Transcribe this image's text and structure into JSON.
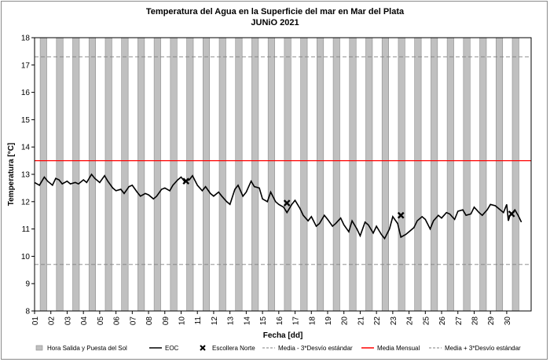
{
  "chart_data": {
    "type": "line",
    "title": "Temperatura del Agua en la Superficie del mar en Mar del Plata",
    "subtitle": "JUNiO 2021",
    "xlabel": "Fecha [dd]",
    "ylabel": "Temperatura [°C]",
    "ylim": [
      8,
      18
    ],
    "yticks": [
      "8",
      "9",
      "10",
      "11",
      "12",
      "13",
      "14",
      "15",
      "16",
      "17",
      "18"
    ],
    "xticks": [
      "01",
      "02",
      "03",
      "04",
      "05",
      "06",
      "07",
      "08",
      "09",
      "10",
      "11",
      "12",
      "13",
      "14",
      "15",
      "16",
      "17",
      "18",
      "19",
      "20",
      "21",
      "22",
      "23",
      "24",
      "25",
      "26",
      "27",
      "28",
      "29",
      "30"
    ],
    "grid": false,
    "legend_position": "bottom",
    "daylight_bars": {
      "name": "Hora Salida y Puesta del Sol",
      "color": "#c0c0c0",
      "sunrise_hour": 8.2,
      "sunset_hour": 18.0
    },
    "reference_lines": [
      {
        "name": "Media - 3*Desvío estándar",
        "value": 9.7,
        "color": "#808080",
        "style": "dashed"
      },
      {
        "name": "Media Mensual",
        "value": 13.5,
        "color": "#ff0000",
        "style": "solid"
      },
      {
        "name": "Media + 3*Desvío estándar",
        "value": 17.3,
        "color": "#808080",
        "style": "dashed"
      }
    ],
    "series": [
      {
        "name": "EOC",
        "color": "#000000",
        "x": [
          1.0,
          1.3,
          1.6,
          1.8,
          2.1,
          2.3,
          2.5,
          2.7,
          3.0,
          3.2,
          3.5,
          3.7,
          4.0,
          4.2,
          4.5,
          4.7,
          5.0,
          5.3,
          5.5,
          5.8,
          6.0,
          6.3,
          6.5,
          6.8,
          7.0,
          7.3,
          7.5,
          7.8,
          8.0,
          8.3,
          8.5,
          8.8,
          9.0,
          9.3,
          9.5,
          9.8,
          10.0,
          10.2,
          10.5,
          10.7,
          11.0,
          11.3,
          11.5,
          11.8,
          12.0,
          12.3,
          12.5,
          12.8,
          13.0,
          13.3,
          13.5,
          13.8,
          14.0,
          14.3,
          14.5,
          14.8,
          15.0,
          15.3,
          15.5,
          15.8,
          16.0,
          16.3,
          16.5,
          16.8,
          17.0,
          17.3,
          17.5,
          17.8,
          18.0,
          18.3,
          18.5,
          18.8,
          19.0,
          19.3,
          19.5,
          19.8,
          20.0,
          20.3,
          20.5,
          20.8,
          21.0,
          21.3,
          21.5,
          21.8,
          22.0,
          22.3,
          22.5,
          22.8,
          23.0,
          23.3,
          23.5,
          23.8,
          24.0,
          24.3,
          24.5,
          24.8,
          25.0,
          25.3,
          25.5,
          25.8,
          26.0,
          26.3,
          26.5,
          26.8,
          27.0,
          27.3,
          27.5,
          27.8,
          28.0,
          28.3,
          28.5,
          28.8,
          29.0,
          29.3,
          29.5,
          29.8,
          30.0,
          30.1,
          30.2,
          30.5,
          30.7,
          30.9
        ],
        "values": [
          12.7,
          12.6,
          12.9,
          12.75,
          12.6,
          12.85,
          12.8,
          12.65,
          12.75,
          12.65,
          12.7,
          12.65,
          12.8,
          12.7,
          13.0,
          12.85,
          12.7,
          12.95,
          12.75,
          12.5,
          12.4,
          12.45,
          12.3,
          12.55,
          12.6,
          12.35,
          12.2,
          12.3,
          12.25,
          12.1,
          12.2,
          12.45,
          12.5,
          12.4,
          12.6,
          12.8,
          12.9,
          12.75,
          12.8,
          12.95,
          12.6,
          12.4,
          12.55,
          12.3,
          12.2,
          12.35,
          12.2,
          12.0,
          11.9,
          12.45,
          12.6,
          12.2,
          12.35,
          12.75,
          12.55,
          12.5,
          12.1,
          12.0,
          12.35,
          12.0,
          11.9,
          11.8,
          11.6,
          11.9,
          12.05,
          11.75,
          11.5,
          11.3,
          11.45,
          11.1,
          11.2,
          11.5,
          11.35,
          11.1,
          11.2,
          11.4,
          11.15,
          10.9,
          11.3,
          11.0,
          10.75,
          11.25,
          11.15,
          10.85,
          11.1,
          10.8,
          10.65,
          11.0,
          11.45,
          11.2,
          10.7,
          10.8,
          10.9,
          11.05,
          11.3,
          11.45,
          11.35,
          11.0,
          11.3,
          11.5,
          11.4,
          11.6,
          11.55,
          11.35,
          11.65,
          11.7,
          11.5,
          11.55,
          11.8,
          11.6,
          11.5,
          11.7,
          11.9,
          11.85,
          11.75,
          11.6,
          11.9,
          11.3,
          11.5,
          11.7,
          11.5,
          11.25
        ]
      },
      {
        "name": "Escollera Norte",
        "color": "#000000",
        "marker": "x",
        "x": [
          10.3,
          16.5,
          23.5,
          30.3
        ],
        "values": [
          12.75,
          11.95,
          11.5,
          11.55
        ]
      }
    ]
  }
}
